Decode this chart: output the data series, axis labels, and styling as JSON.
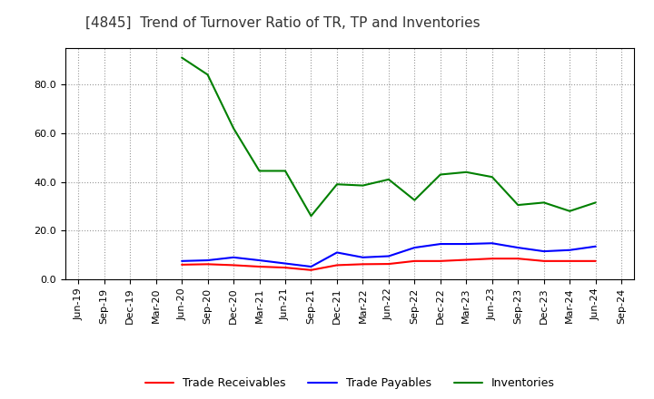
{
  "title": "[4845]  Trend of Turnover Ratio of TR, TP and Inventories",
  "x_labels": [
    "Jun-19",
    "Sep-19",
    "Dec-19",
    "Mar-20",
    "Jun-20",
    "Sep-20",
    "Dec-20",
    "Mar-21",
    "Jun-21",
    "Sep-21",
    "Dec-21",
    "Mar-22",
    "Jun-22",
    "Sep-22",
    "Dec-22",
    "Mar-23",
    "Jun-23",
    "Sep-23",
    "Dec-23",
    "Mar-24",
    "Jun-24",
    "Sep-24"
  ],
  "trade_receivables": [
    null,
    null,
    null,
    null,
    6.0,
    6.2,
    5.8,
    5.2,
    4.8,
    3.8,
    5.8,
    6.2,
    6.3,
    7.5,
    7.5,
    8.0,
    8.5,
    8.5,
    7.5,
    7.5,
    7.5,
    null
  ],
  "trade_payables": [
    null,
    null,
    null,
    null,
    7.5,
    7.8,
    9.0,
    7.8,
    6.5,
    5.2,
    11.0,
    9.0,
    9.5,
    13.0,
    14.5,
    14.5,
    14.8,
    13.0,
    11.5,
    12.0,
    13.5,
    null
  ],
  "inventories": [
    null,
    null,
    null,
    null,
    91.0,
    84.0,
    62.0,
    44.5,
    44.5,
    26.0,
    39.0,
    38.5,
    41.0,
    32.5,
    43.0,
    44.0,
    42.0,
    30.5,
    31.5,
    28.0,
    31.5,
    null
  ],
  "ylim": [
    0.0,
    95.0
  ],
  "ytick_vals": [
    0.0,
    20.0,
    40.0,
    60.0,
    80.0
  ],
  "tr_color": "#ff0000",
  "tp_color": "#0000ff",
  "inv_color": "#008000",
  "background_color": "#ffffff",
  "grid_color": "#999999",
  "title_fontsize": 11,
  "legend_fontsize": 9,
  "tick_fontsize": 8
}
